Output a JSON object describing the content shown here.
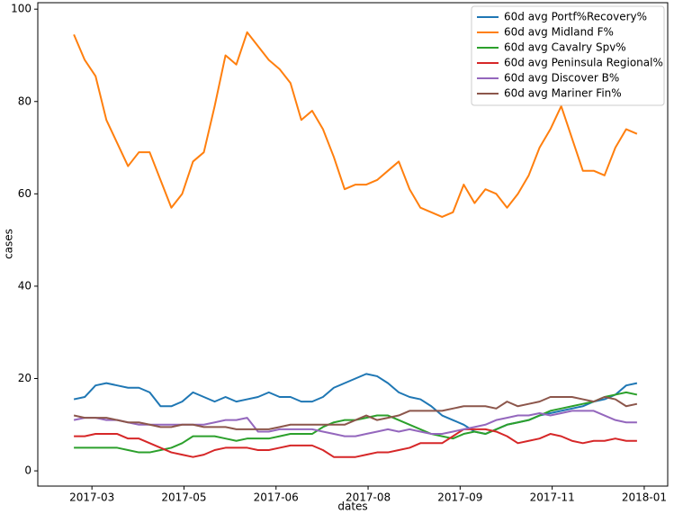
{
  "chart_data": {
    "type": "line",
    "xlabel": "dates",
    "ylabel": "cases",
    "x": [
      49,
      55,
      61,
      67,
      73,
      79,
      85,
      91,
      97,
      103,
      109,
      115,
      121,
      127,
      133,
      139,
      145,
      151,
      157,
      163,
      169,
      175,
      181,
      187,
      193,
      199,
      205,
      211,
      217,
      223,
      229,
      235,
      241,
      247,
      253,
      259,
      265,
      271,
      277,
      283,
      289,
      295,
      301,
      307,
      313,
      319,
      325,
      331,
      337,
      343,
      349,
      355,
      361
    ],
    "xlim": [
      29,
      378
    ],
    "xticks": [
      {
        "value": 59,
        "label": "2017-03"
      },
      {
        "value": 110,
        "label": "2017-05"
      },
      {
        "value": 161,
        "label": "2017-06"
      },
      {
        "value": 212,
        "label": "2017-08"
      },
      {
        "value": 263,
        "label": "2017-09"
      },
      {
        "value": 314,
        "label": "2017-11"
      },
      {
        "value": 365,
        "label": "2018-01"
      }
    ],
    "ylim": [
      -3.3,
      101.4
    ],
    "yticks": [
      0,
      20,
      40,
      60,
      80,
      100
    ],
    "legend": "upper right",
    "series": [
      {
        "name": "60d avg Portf%Recovery%",
        "color": "#1f77b4",
        "values": [
          15.5,
          16,
          18.5,
          19,
          18.5,
          18,
          18,
          17,
          14,
          14,
          15,
          17,
          16,
          15,
          16,
          15,
          15.5,
          16,
          17,
          16,
          16,
          15,
          15,
          16,
          18,
          19,
          20,
          21,
          20.5,
          19,
          17,
          16,
          15.5,
          14,
          12,
          11,
          10,
          8.5,
          8,
          9,
          10,
          10.5,
          11,
          12,
          12.5,
          13,
          13.5,
          14,
          15,
          15.5,
          16.5,
          18.5,
          19
        ]
      },
      {
        "name": "60d avg Midland F%",
        "color": "#ff7f0e",
        "values": [
          94.5,
          89,
          85.5,
          76,
          71,
          66,
          69,
          69,
          63,
          57,
          60,
          67,
          69,
          79,
          90,
          88,
          95,
          92,
          89,
          87,
          84,
          76,
          78,
          74,
          68,
          61,
          62,
          62,
          63,
          65,
          67,
          61,
          57,
          56,
          55,
          56,
          62,
          58,
          61,
          60,
          57,
          60,
          64,
          70,
          74,
          79,
          72,
          65,
          65,
          64,
          70,
          74,
          73
        ]
      },
      {
        "name": "60d avg Cavalry Spv%",
        "color": "#2ca02c",
        "values": [
          5,
          5,
          5,
          5,
          5,
          4.5,
          4,
          4,
          4.5,
          5,
          6,
          7.5,
          7.5,
          7.5,
          7,
          6.5,
          7,
          7,
          7,
          7.5,
          8,
          8,
          8,
          9.5,
          10.5,
          11,
          11,
          11.5,
          12,
          12,
          11,
          10,
          9,
          8,
          7.5,
          7,
          8,
          8.5,
          8,
          9,
          10,
          10.5,
          11,
          12,
          13,
          13.5,
          14,
          14.5,
          15,
          16,
          16.5,
          17,
          16.5
        ]
      },
      {
        "name": "60d avg Peninsula Regional%",
        "color": "#d62728",
        "values": [
          7.5,
          7.5,
          8,
          8,
          8,
          7,
          7,
          6,
          5,
          4,
          3.5,
          3,
          3.5,
          4.5,
          5,
          5,
          5,
          4.5,
          4.5,
          5,
          5.5,
          5.5,
          5.5,
          4.5,
          3,
          3,
          3,
          3.5,
          4,
          4,
          4.5,
          5,
          6,
          6,
          6,
          7.5,
          9,
          9,
          9,
          8.5,
          7.5,
          6,
          6.5,
          7,
          8,
          7.5,
          6.5,
          6,
          6.5,
          6.5,
          7,
          6.5,
          6.5
        ]
      },
      {
        "name": "60d avg Discover B%",
        "color": "#9467bd",
        "values": [
          11,
          11.5,
          11.5,
          11,
          11,
          10.5,
          10,
          10,
          10,
          10,
          10,
          10,
          10,
          10.5,
          11,
          11,
          11.5,
          8.5,
          8.5,
          9,
          9,
          9,
          9,
          8.5,
          8,
          7.5,
          7.5,
          8,
          8.5,
          9,
          8.5,
          9,
          8.5,
          8,
          8,
          8.5,
          9,
          9.5,
          10,
          11,
          11.5,
          12,
          12,
          12.5,
          12,
          12.5,
          13,
          13,
          13,
          12,
          11,
          10.5,
          10.5
        ]
      },
      {
        "name": "60d avg Mariner Fin%",
        "color": "#8c564b",
        "values": [
          12,
          11.5,
          11.5,
          11.5,
          11,
          10.5,
          10.5,
          10,
          9.5,
          9.5,
          10,
          10,
          9.5,
          9.5,
          9.5,
          9,
          9,
          9,
          9,
          9.5,
          10,
          10,
          10,
          10,
          10,
          10,
          11,
          12,
          11,
          11.5,
          12,
          13,
          13,
          13,
          13,
          13.5,
          14,
          14,
          14,
          13.5,
          15,
          14,
          14.5,
          15,
          16,
          16,
          16,
          15.5,
          15,
          16,
          15.5,
          14,
          14.5
        ]
      }
    ]
  }
}
